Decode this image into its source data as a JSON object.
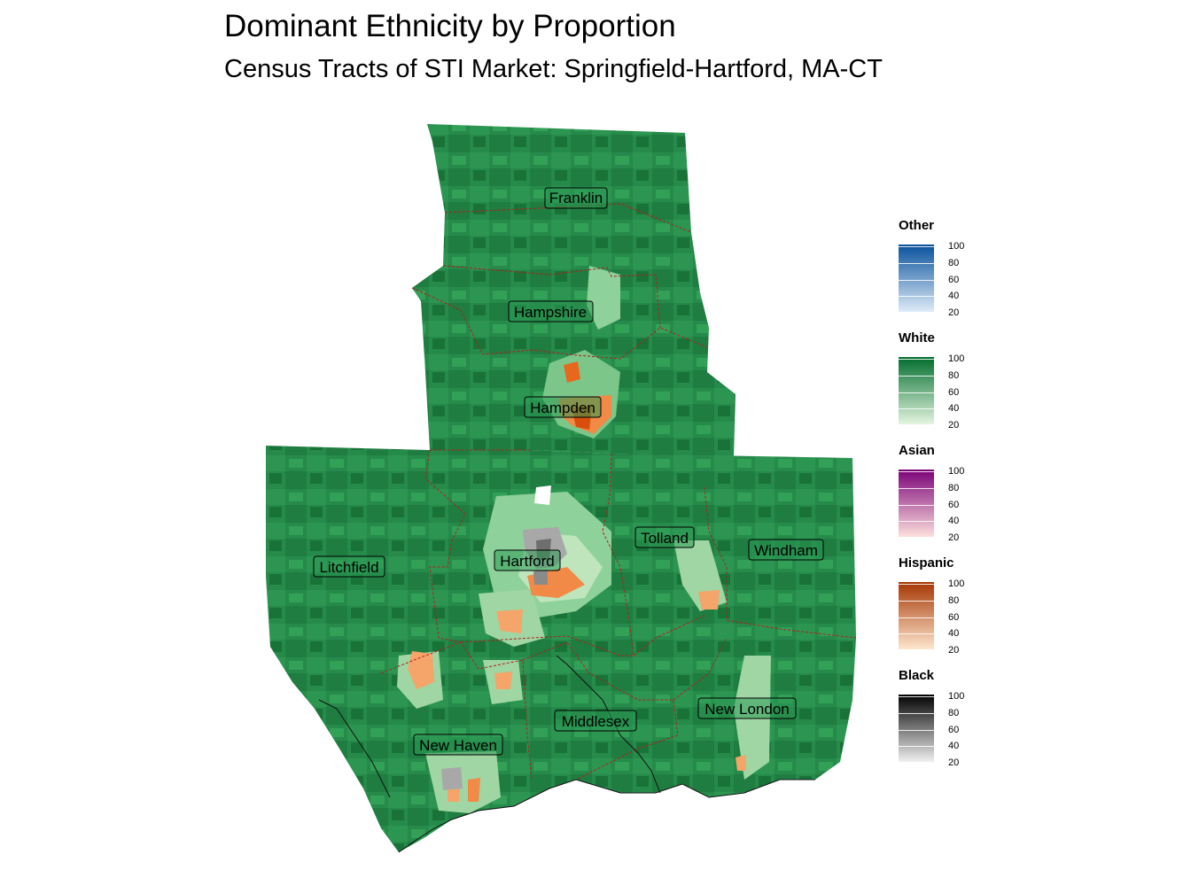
{
  "title": "Dominant Ethnicity by Proportion",
  "subtitle": "Census Tracts of STI Market: Springfield-Hartford, MA-CT",
  "counties": [
    {
      "id": "franklin",
      "label": "Franklin"
    },
    {
      "id": "hampshire",
      "label": "Hampshire"
    },
    {
      "id": "hampden",
      "label": "Hampden"
    },
    {
      "id": "litchfield",
      "label": "Litchfield"
    },
    {
      "id": "hartford",
      "label": "Hartford"
    },
    {
      "id": "tolland",
      "label": "Tolland"
    },
    {
      "id": "windham",
      "label": "Windham"
    },
    {
      "id": "middlesex",
      "label": "Middlesex"
    },
    {
      "id": "new-london",
      "label": "New London"
    },
    {
      "id": "new-haven",
      "label": "New Haven"
    }
  ],
  "legend": [
    {
      "title": "Other",
      "dark": "#08519c",
      "light": "#deebf7",
      "ticks": [
        "100",
        "80",
        "60",
        "40",
        "20"
      ]
    },
    {
      "title": "White",
      "dark": "#006d2c",
      "light": "#e5f5e0",
      "ticks": [
        "100",
        "80",
        "60",
        "40",
        "20"
      ]
    },
    {
      "title": "Asian",
      "dark": "#7a0177",
      "light": "#fde0dd",
      "ticks": [
        "100",
        "80",
        "60",
        "40",
        "20"
      ]
    },
    {
      "title": "Hispanic",
      "dark": "#a63603",
      "light": "#fee6ce",
      "ticks": [
        "100",
        "80",
        "60",
        "40",
        "20"
      ]
    },
    {
      "title": "Black",
      "dark": "#000000",
      "light": "#f0f0f0",
      "ticks": [
        "100",
        "80",
        "60",
        "40",
        "20"
      ]
    }
  ]
}
